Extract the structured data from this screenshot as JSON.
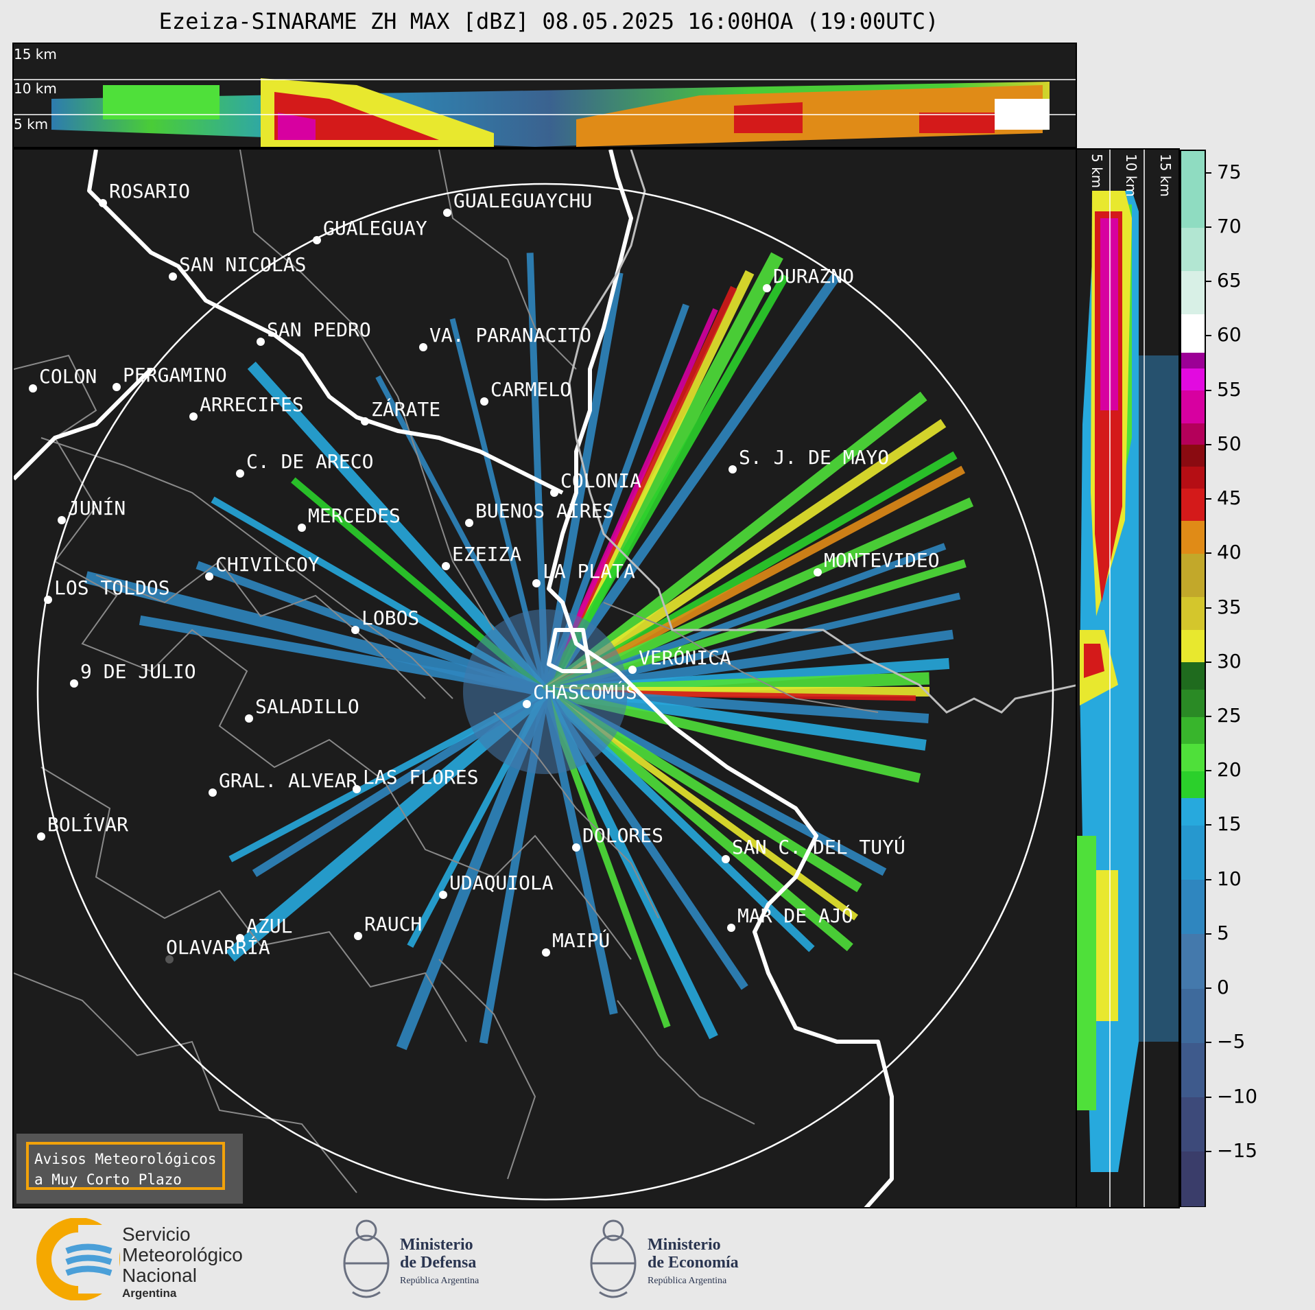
{
  "title": "Ezeiza-SINARAME ZH MAX [dBZ] 08.05.2025 16:00HOA (19:00UTC)",
  "top_panel": {
    "km_labels": [
      "15 km",
      "10 km",
      "5 km"
    ]
  },
  "side_panel": {
    "km_labels": [
      "5 km",
      "10 km",
      "15 km"
    ]
  },
  "colorbar": {
    "ticks": [
      "75",
      "70",
      "65",
      "60",
      "55",
      "50",
      "45",
      "40",
      "35",
      "30",
      "25",
      "20",
      "15",
      "10",
      "5",
      "0",
      "−5",
      "−10",
      "−15"
    ],
    "range": [
      -20,
      77
    ],
    "colors": [
      "#3a3d6a",
      "#3d4a7a",
      "#3e5a8c",
      "#3e6a9c",
      "#4479ac",
      "#2f86bf",
      "#2698cf",
      "#27a9dd",
      "#2bd02b",
      "#4fe03a",
      "#38b52c",
      "#2a8a25",
      "#1f6b1e",
      "#e8e82e",
      "#d4c62c",
      "#c2a82a",
      "#e08b17",
      "#d41a1a",
      "#b50e14",
      "#8a0b11",
      "#b4005a",
      "#d700a0",
      "#e20ae0",
      "#9c0096",
      "#ffffff",
      "#d8f0e6",
      "#b2e6d2",
      "#8fdcc1"
    ],
    "color_bounds": [
      -20,
      -15,
      -10,
      -5,
      0,
      5,
      10,
      15,
      17.5,
      20,
      22.5,
      25,
      27.5,
      30,
      33,
      36,
      40,
      43,
      46,
      48,
      50,
      52,
      55,
      57,
      58.5,
      62,
      66,
      70,
      77
    ]
  },
  "cities": [
    {
      "name": "ROSARIO"
    },
    {
      "name": "GUALEGUAYCHU"
    },
    {
      "name": "GUALEGUAY"
    },
    {
      "name": "SAN NICOLÁS"
    },
    {
      "name": "DURAZNO"
    },
    {
      "name": "SAN PEDRO"
    },
    {
      "name": "VA. PARANACITO"
    },
    {
      "name": "COLON"
    },
    {
      "name": "PERGAMINO"
    },
    {
      "name": "CARMELO"
    },
    {
      "name": "ZÁRATE"
    },
    {
      "name": "ARRECIFES"
    },
    {
      "name": "S. J. DE MAYO"
    },
    {
      "name": "C. DE ARECO"
    },
    {
      "name": "COLONIA"
    },
    {
      "name": "JUNÍN"
    },
    {
      "name": "BUENOS AIRES"
    },
    {
      "name": "MERCEDES"
    },
    {
      "name": "MONTEVIDEO"
    },
    {
      "name": "EZEIZA"
    },
    {
      "name": "CHIVILCOY"
    },
    {
      "name": "LA PLATA"
    },
    {
      "name": "LOS TOLDOS"
    },
    {
      "name": "LOBOS"
    },
    {
      "name": "VERÓNICA"
    },
    {
      "name": "9 DE JULIO"
    },
    {
      "name": "CHASCOMÚS"
    },
    {
      "name": "SALADILLO"
    },
    {
      "name": "GRAL. ALVEAR"
    },
    {
      "name": "LAS FLORES"
    },
    {
      "name": "BOLÍVAR"
    },
    {
      "name": "DOLORES"
    },
    {
      "name": "SAN C. DEL TUYÚ"
    },
    {
      "name": "UDAQUIOLA"
    },
    {
      "name": "MAR DE AJÓ"
    },
    {
      "name": "AZUL"
    },
    {
      "name": "RAUCH"
    },
    {
      "name": "OLAVARRÍA"
    },
    {
      "name": "MAIPÚ"
    }
  ],
  "warning_box": {
    "line1": "Avisos Meteorológicos",
    "line2": "a Muy Corto Plazo"
  },
  "footer": {
    "smn": {
      "line1": "Servicio",
      "line2": "Meteorológico",
      "line3": "Nacional",
      "line4": "Argentina"
    },
    "defensa": {
      "line1": "Ministerio",
      "line2": "de Defensa",
      "line3": "República Argentina"
    },
    "economia": {
      "line1": "Ministerio",
      "line2": "de Economía",
      "line3": "República Argentina"
    }
  }
}
